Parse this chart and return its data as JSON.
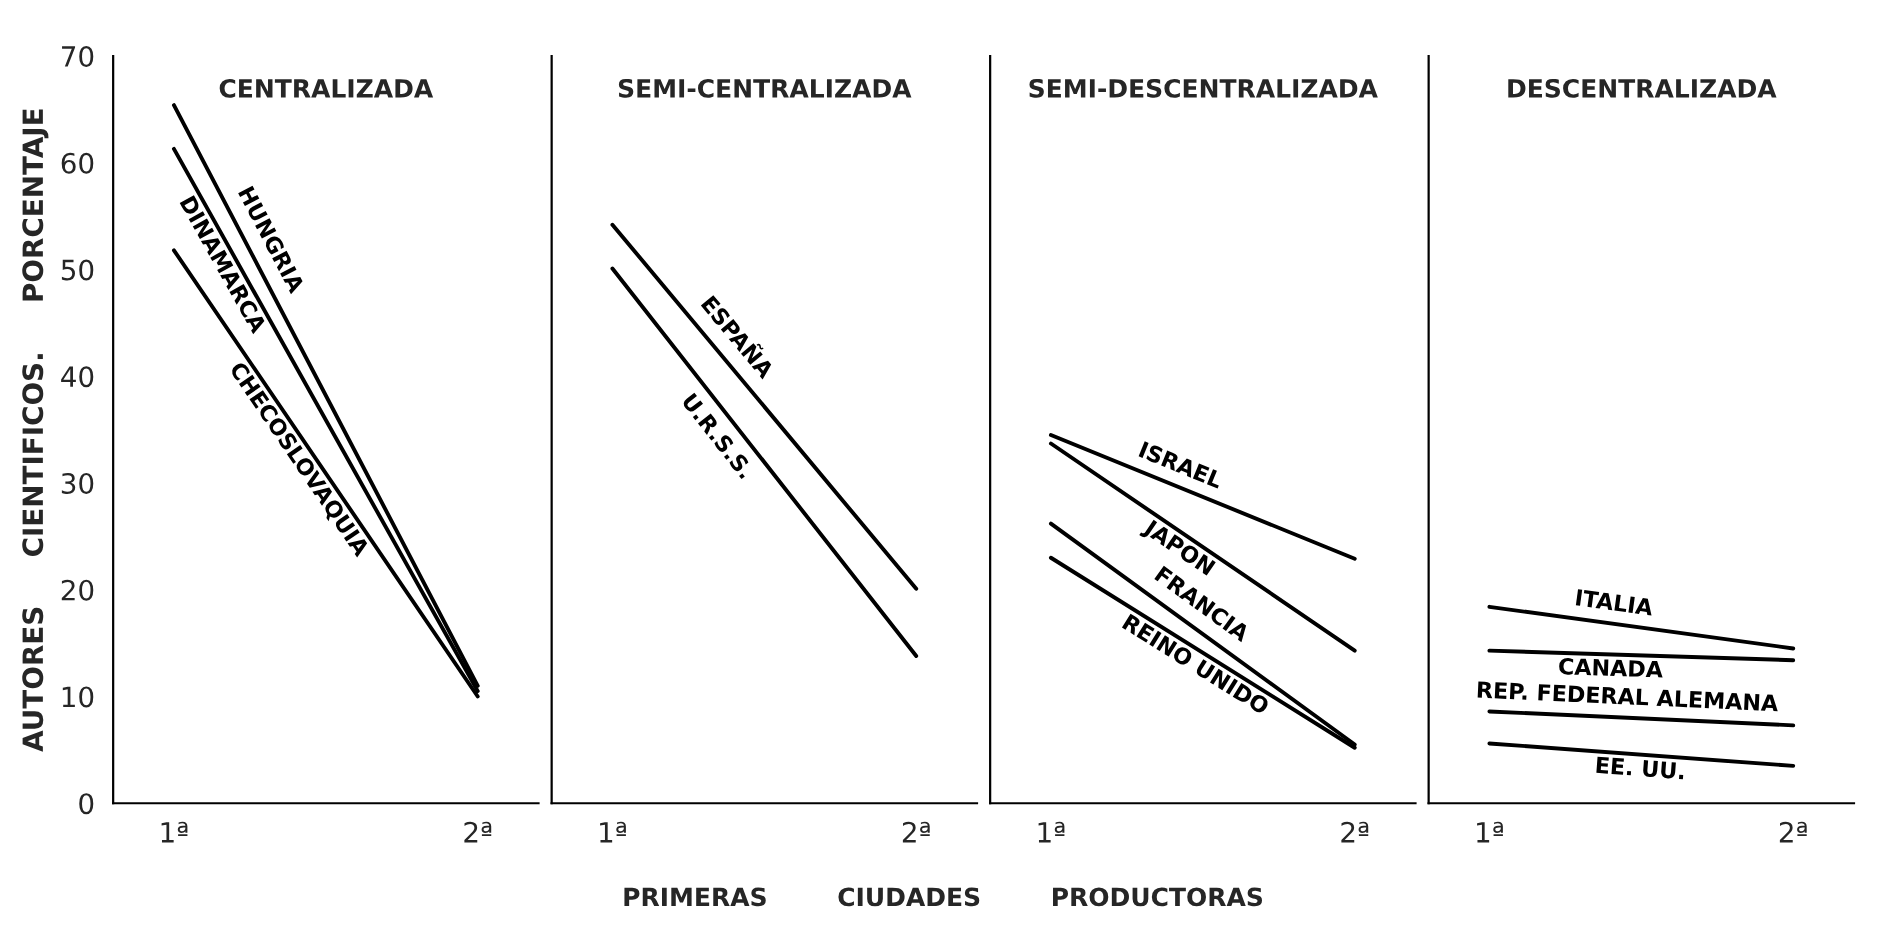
{
  "chart_data": [
    {
      "type": "line",
      "title": "CENTRALIZADA",
      "ylabel": "AUTORES     CIENTIFICOS.     PORCENTAJE",
      "xlabel": "PRIMERAS        CIUDADES        PRODUCTORAS",
      "categories": [
        "1ª",
        "2ª"
      ],
      "ylim": [
        0,
        70
      ],
      "yticks": [
        0,
        10,
        20,
        30,
        40,
        50,
        60,
        70
      ],
      "grid": false,
      "marker": "none",
      "line_style": "solid",
      "series": [
        {
          "name": "HUNGRIA",
          "color": "#000000",
          "values": [
            65.4,
            11
          ]
        },
        {
          "name": "DINAMARCA",
          "color": "#000000",
          "values": [
            61.3,
            10.5
          ]
        },
        {
          "name": "CHECOSLOVAQUIA",
          "color": "#000000",
          "values": [
            51.8,
            10
          ]
        }
      ]
    },
    {
      "type": "line",
      "title": "SEMI-CENTRALIZADA",
      "categories": [
        "1ª",
        "2ª"
      ],
      "ylim": [
        0,
        70
      ],
      "yticks": [
        0,
        10,
        20,
        30,
        40,
        50,
        60,
        70
      ],
      "tick_labels": "x",
      "grid": false,
      "marker": "none",
      "line_style": "solid",
      "series": [
        {
          "name": "ESPAÑA",
          "color": "#000000",
          "values": [
            54.2,
            20.1
          ]
        },
        {
          "name": "U.R.S.S.",
          "color": "#000000",
          "values": [
            50.1,
            13.8
          ]
        }
      ]
    },
    {
      "type": "line",
      "title": "SEMI-DESCENTRALIZADA",
      "categories": [
        "1ª",
        "2ª"
      ],
      "ylim": [
        0,
        70
      ],
      "yticks": [
        0,
        10,
        20,
        30,
        40,
        50,
        60,
        70
      ],
      "tick_labels": "x",
      "grid": false,
      "marker": "none",
      "line_style": "solid",
      "series": [
        {
          "name": "ISRAEL",
          "color": "#000000",
          "values": [
            34.5,
            22.9
          ]
        },
        {
          "name": "JAPON",
          "color": "#000000",
          "values": [
            33.7,
            14.3
          ]
        },
        {
          "name": "FRANCIA",
          "color": "#000000",
          "values": [
            26.2,
            5.5
          ]
        },
        {
          "name": "REINO UNIDO",
          "color": "#000000",
          "values": [
            23,
            5.2
          ]
        }
      ]
    },
    {
      "type": "line",
      "title": "DESCENTRALIZADA",
      "categories": [
        "1ª",
        "2ª"
      ],
      "ylim": [
        0,
        70
      ],
      "yticks": [
        0,
        10,
        20,
        30,
        40,
        50,
        60,
        70
      ],
      "tick_labels": "x",
      "grid": false,
      "marker": "none",
      "line_style": "solid",
      "series": [
        {
          "name": "ITALIA",
          "color": "#000000",
          "values": [
            18.4,
            14.5
          ]
        },
        {
          "name": "CANADA",
          "color": "#000000",
          "values": [
            14.3,
            13.4
          ]
        },
        {
          "name": "REP. FEDERAL ALEMANA",
          "color": "#000000",
          "values": [
            8.6,
            7.3
          ]
        },
        {
          "name": "EE. UU.",
          "color": "#000000",
          "values": [
            5.6,
            3.5
          ]
        }
      ]
    }
  ]
}
